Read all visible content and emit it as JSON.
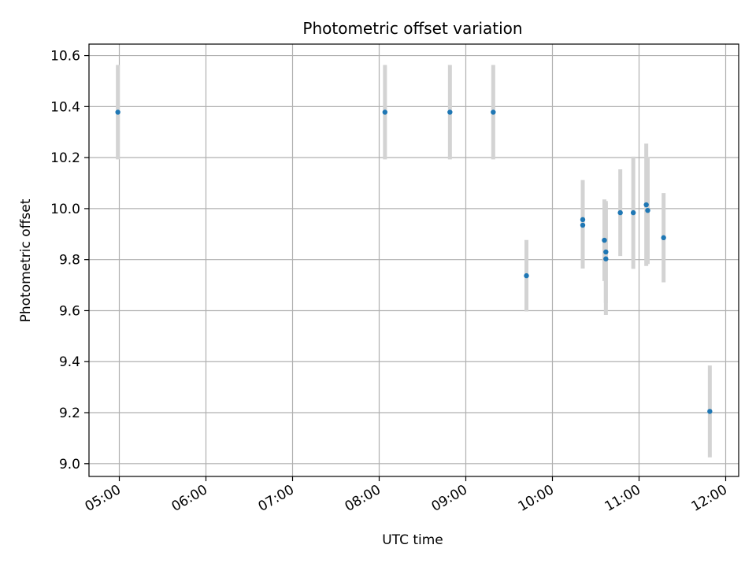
{
  "chart_data": {
    "type": "scatter",
    "title": "Photometric offset variation",
    "xlabel": "UTC time",
    "ylabel": "Photometric offset",
    "x_ticks": [
      "05:00",
      "06:00",
      "07:00",
      "08:00",
      "09:00",
      "10:00",
      "11:00",
      "12:00"
    ],
    "y_ticks": [
      "9.0",
      "9.2",
      "9.4",
      "9.6",
      "9.8",
      "10.0",
      "10.2",
      "10.4",
      "10.6"
    ],
    "xlim": [
      "04:39",
      "12:09"
    ],
    "ylim": [
      8.95,
      10.645
    ],
    "grid": true,
    "colors": {
      "points": "#1f77b4",
      "errorbars": "#d3d3d3",
      "grid": "#b0b0b0"
    },
    "points": [
      {
        "x": "04:59",
        "y": 10.378,
        "err": 0.185
      },
      {
        "x": "08:04",
        "y": 10.378,
        "err": 0.185
      },
      {
        "x": "08:49",
        "y": 10.378,
        "err": 0.185
      },
      {
        "x": "09:19",
        "y": 10.378,
        "err": 0.185
      },
      {
        "x": "09:42",
        "y": 9.737,
        "err": 0.14
      },
      {
        "x": "10:21",
        "y": 9.935,
        "err": 0.17
      },
      {
        "x": "10:21",
        "y": 9.957,
        "err": 0.155
      },
      {
        "x": "10:36",
        "y": 9.876,
        "err": 0.16
      },
      {
        "x": "10:37",
        "y": 9.803,
        "err": 0.22
      },
      {
        "x": "10:37",
        "y": 9.83,
        "err": 0.2
      },
      {
        "x": "10:47",
        "y": 9.984,
        "err": 0.17
      },
      {
        "x": "10:56",
        "y": 9.984,
        "err": 0.22
      },
      {
        "x": "11:05",
        "y": 10.015,
        "err": 0.24
      },
      {
        "x": "11:06",
        "y": 9.993,
        "err": 0.21
      },
      {
        "x": "11:17",
        "y": 9.886,
        "err": 0.175
      },
      {
        "x": "11:49",
        "y": 9.205,
        "err": 0.18
      }
    ]
  }
}
